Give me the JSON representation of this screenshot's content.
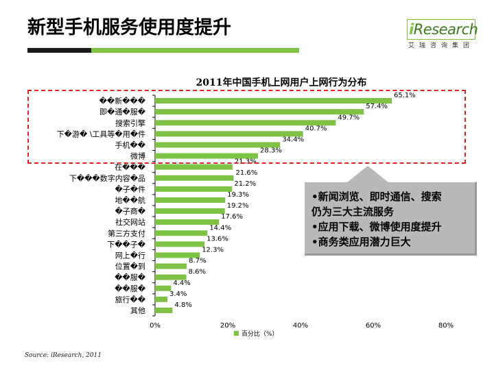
{
  "header": {
    "title": "新型手机服务使用度提升",
    "logo_main": "iResearch",
    "logo_sub": "艾瑞咨询集团"
  },
  "colors": {
    "bar": "#7dc242",
    "accent_green": "#7dc242",
    "dark_rule": "#1a1a1a",
    "highlight": "#e32020",
    "callout_bg": "#b9b9b9"
  },
  "callout": {
    "items": [
      "•新闻浏览、即时通信、搜索仍为三大主流服务",
      "•应用下载、微博使用度提升",
      "•商务类应用潜力巨大"
    ],
    "line1": "•新闻浏览、即时通信、搜索",
    "line2": "仍为三大主流服务",
    "line3": "•应用下载、微博使用度提升",
    "line4": "•商务类应用潜力巨大"
  },
  "source": "Source: iResearch, 2011",
  "chart_data": {
    "type": "bar",
    "orientation": "horizontal",
    "title": "2011年中国手机上网用户上网行为分布",
    "xlabel": "百分比（%）",
    "ylabel": "",
    "xlim": [
      0,
      80
    ],
    "xticks": [
      "0%",
      "20%",
      "40%",
      "60%",
      "80%"
    ],
    "categories": [
      "��新���",
      "即�通�服�",
      "搜索引擎",
      "下�游� \\工具等�用�件",
      "手机��",
      "微博",
      "在���",
      "下���数字内容�品",
      "�子�件",
      "地��航",
      "�子商�",
      "社交网站",
      "第三方支付",
      "下��子�",
      "网上�行",
      "位置�到",
      "��服�",
      "��服�",
      "旅行��",
      "其他"
    ],
    "values": [
      65.1,
      57.4,
      49.7,
      40.7,
      34.4,
      28.3,
      21.3,
      21.6,
      21.2,
      19.3,
      19.2,
      17.6,
      14.4,
      13.6,
      12.3,
      8.7,
      8.6,
      4.4,
      3.4,
      4.8
    ],
    "value_labels": [
      "65.1%",
      "57.4%",
      "49.7%",
      "40.7%",
      "34.4%",
      "28.3%",
      "21.3%",
      "21.6%",
      "21.2%",
      "19.3%",
      "19.2%",
      "17.6%",
      "14.4%",
      "13.6%",
      "12.3%",
      "8.7%",
      "8.6%",
      "4.4%",
      "3.4%",
      "4.8%"
    ],
    "legend": "bottom"
  }
}
